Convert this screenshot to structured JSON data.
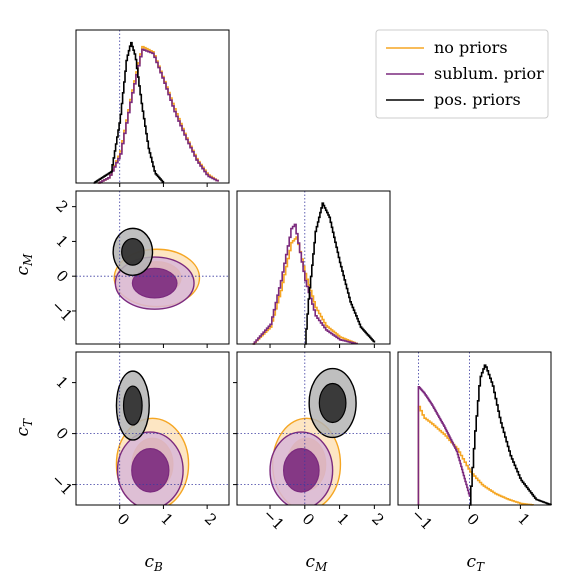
{
  "chart_data": {
    "type": "corner",
    "parameters": [
      "c_B",
      "c_M",
      "c_T"
    ],
    "axis_labels": {
      "c_B": {
        "main": "c",
        "sub": "B"
      },
      "c_M": {
        "main": "c",
        "sub": "M"
      },
      "c_T": {
        "main": "c",
        "sub": "T"
      }
    },
    "ranges": {
      "c_B": [
        -1.0,
        2.5
      ],
      "c_M": [
        -1.95,
        2.45
      ],
      "c_T": [
        -1.4,
        1.6
      ]
    },
    "ticks": {
      "c_B": [
        0,
        1,
        2
      ],
      "c_M": [
        -1,
        0,
        1,
        2
      ],
      "c_T": [
        -1,
        0,
        1
      ]
    },
    "tick_labels": {
      "c_B": [
        "0",
        "1",
        "2"
      ],
      "c_M": [
        "−1",
        "0",
        "1",
        "2"
      ],
      "c_T": [
        "−1",
        "0",
        "1"
      ]
    },
    "reference_lines": {
      "c_B": 0,
      "c_M": 0,
      "c_T": [
        0,
        -1
      ]
    },
    "legend": {
      "position": "top-right",
      "entries": [
        {
          "label": "no priors",
          "color": "#f5a623"
        },
        {
          "label": "sublum. prior",
          "color": "#7b2a7e"
        },
        {
          "label": "pos. priors",
          "color": "#000000"
        }
      ]
    },
    "series": [
      {
        "name": "no priors",
        "color": "#f5a623",
        "marginals": {
          "c_B": {
            "x": [
              -0.5,
              -0.25,
              0.0,
              0.25,
              0.5,
              0.75,
              1.0,
              1.25,
              1.5,
              1.75,
              2.0,
              2.25
            ],
            "y": [
              0.0,
              0.04,
              0.22,
              0.62,
              0.97,
              0.93,
              0.73,
              0.52,
              0.33,
              0.17,
              0.06,
              0.01
            ]
          },
          "c_M": {
            "x": [
              -1.5,
              -1.0,
              -0.7,
              -0.4,
              -0.25,
              0.0,
              0.3,
              0.6,
              1.0,
              1.5
            ],
            "y": [
              0.0,
              0.12,
              0.38,
              0.72,
              0.76,
              0.5,
              0.26,
              0.13,
              0.05,
              0.0
            ]
          },
          "c_T": {
            "x": [
              -1.0,
              -0.9,
              -0.75,
              -0.5,
              -0.25,
              0.0,
              0.25,
              0.5,
              0.75,
              1.0,
              1.25
            ],
            "y": [
              0.7,
              0.62,
              0.58,
              0.5,
              0.4,
              0.24,
              0.14,
              0.08,
              0.04,
              0.01,
              0.0
            ]
          }
        },
        "contours": {
          "c_B|c_M": {
            "center": [
              0.85,
              -0.05
            ],
            "spread": [
              0.65,
              0.55
            ]
          },
          "c_B|c_T": {
            "center": [
              0.75,
              -0.6
            ],
            "spread": [
              0.55,
              0.6
            ]
          },
          "c_M|c_T": {
            "center": [
              0.05,
              -0.6
            ],
            "spread": [
              0.65,
              0.6
            ]
          }
        }
      },
      {
        "name": "sublum. prior",
        "color": "#7b2a7e",
        "marginals": {
          "c_B": {
            "x": [
              -0.5,
              -0.25,
              0.0,
              0.25,
              0.5,
              0.75,
              1.0,
              1.25,
              1.5,
              1.75,
              2.0,
              2.25
            ],
            "y": [
              0.0,
              0.04,
              0.2,
              0.6,
              0.95,
              0.92,
              0.72,
              0.5,
              0.32,
              0.16,
              0.05,
              0.01
            ]
          },
          "c_M": {
            "x": [
              -1.5,
              -1.0,
              -0.7,
              -0.4,
              -0.3,
              0.0,
              0.3,
              0.6,
              1.0,
              1.5
            ],
            "y": [
              0.0,
              0.14,
              0.45,
              0.82,
              0.85,
              0.45,
              0.2,
              0.1,
              0.03,
              0.0
            ]
          },
          "c_T": {
            "x": [
              -1.0,
              -0.9,
              -0.75,
              -0.5,
              -0.25,
              0.0
            ],
            "y": [
              0.84,
              0.8,
              0.72,
              0.56,
              0.38,
              0.06
            ]
          }
        },
        "contours": {
          "c_B|c_M": {
            "center": [
              0.8,
              -0.2
            ],
            "spread": [
              0.6,
              0.5
            ]
          },
          "c_B|c_T": {
            "center": [
              0.7,
              -0.72
            ],
            "spread": [
              0.5,
              0.5
            ]
          },
          "c_M|c_T": {
            "center": [
              -0.1,
              -0.72
            ],
            "spread": [
              0.6,
              0.5
            ]
          }
        }
      },
      {
        "name": "pos. priors",
        "color": "#000000",
        "marginals": {
          "c_B": {
            "x": [
              -0.6,
              -0.2,
              0.0,
              0.15,
              0.25,
              0.35,
              0.5,
              0.65,
              0.8,
              1.0
            ],
            "y": [
              0.0,
              0.08,
              0.45,
              0.88,
              1.0,
              0.9,
              0.55,
              0.25,
              0.07,
              0.0
            ]
          },
          "c_M": {
            "x": [
              0.0,
              0.1,
              0.3,
              0.5,
              0.7,
              1.0,
              1.3,
              1.6,
              2.0
            ],
            "y": [
              0.0,
              0.32,
              0.8,
              1.0,
              0.9,
              0.58,
              0.3,
              0.12,
              0.01
            ]
          },
          "c_T": {
            "x": [
              0.0,
              0.1,
              0.2,
              0.3,
              0.45,
              0.6,
              0.8,
              1.0,
              1.3,
              1.6
            ],
            "y": [
              0.0,
              0.5,
              0.9,
              1.0,
              0.85,
              0.6,
              0.35,
              0.18,
              0.04,
              0.0
            ]
          }
        },
        "contours": {
          "c_B|c_M": {
            "center": [
              0.3,
              0.7
            ],
            "spread": [
              0.3,
              0.45
            ]
          },
          "c_B|c_T": {
            "center": [
              0.3,
              0.55
            ],
            "spread": [
              0.25,
              0.45
            ]
          },
          "c_M|c_T": {
            "center": [
              0.8,
              0.6
            ],
            "spread": [
              0.45,
              0.45
            ]
          }
        }
      }
    ]
  }
}
